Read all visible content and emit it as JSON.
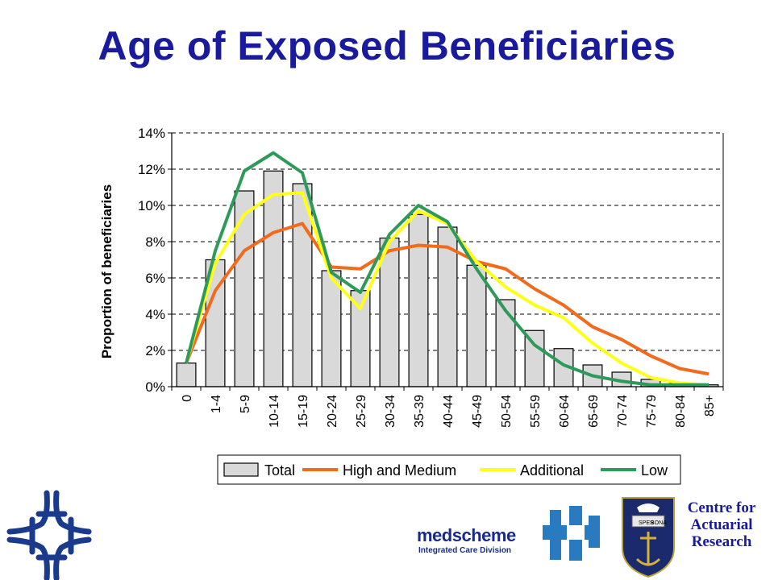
{
  "slide": {
    "title": "Age of Exposed Beneficiaries"
  },
  "colors": {
    "title": "#1a1a9c",
    "bar_fill": "#d9d9d9",
    "high_medium": "#f26b1d",
    "additional": "#ffff1a",
    "low": "#2e9a5a",
    "logo_blue": "#1a3a8c"
  },
  "chart_data": {
    "type": "bar",
    "ylabel": "Proportion of beneficiaries",
    "xlabel": "",
    "ylim": [
      0,
      0.14
    ],
    "y_ticks": [
      "0%",
      "2%",
      "4%",
      "6%",
      "8%",
      "10%",
      "12%",
      "14%"
    ],
    "grid": "horizontal dashed",
    "legend_position": "bottom",
    "categories": [
      "0",
      "1-4",
      "5-9",
      "10-14",
      "15-19",
      "20-24",
      "25-29",
      "30-34",
      "35-39",
      "40-44",
      "45-49",
      "50-54",
      "55-59",
      "60-64",
      "65-69",
      "70-74",
      "75-79",
      "80-84",
      "85+"
    ],
    "series": [
      {
        "name": "Total",
        "type": "bar",
        "values": [
          0.013,
          0.07,
          0.108,
          0.119,
          0.112,
          0.064,
          0.053,
          0.082,
          0.095,
          0.088,
          0.067,
          0.048,
          0.031,
          0.021,
          0.012,
          0.008,
          0.004,
          0.002,
          0.001
        ]
      },
      {
        "name": "High and Medium",
        "type": "line",
        "values": [
          0.013,
          0.053,
          0.075,
          0.085,
          0.09,
          0.066,
          0.065,
          0.075,
          0.078,
          0.077,
          0.069,
          0.065,
          0.054,
          0.045,
          0.033,
          0.026,
          0.017,
          0.01,
          0.007
        ]
      },
      {
        "name": "Additional",
        "type": "line",
        "values": [
          0.013,
          0.068,
          0.095,
          0.106,
          0.107,
          0.06,
          0.043,
          0.08,
          0.097,
          0.09,
          0.069,
          0.055,
          0.045,
          0.038,
          0.024,
          0.013,
          0.005,
          0.002,
          0.001
        ]
      },
      {
        "name": "Low",
        "type": "line",
        "values": [
          0.013,
          0.075,
          0.119,
          0.129,
          0.118,
          0.063,
          0.052,
          0.084,
          0.1,
          0.091,
          0.065,
          0.042,
          0.023,
          0.012,
          0.006,
          0.003,
          0.001,
          0.001,
          0.001
        ]
      }
    ]
  },
  "logos": {
    "car_lines": [
      "Centre for",
      "Actuarial",
      "Research"
    ],
    "medscheme_name": "medscheme",
    "medscheme_division": "Integrated Care Division",
    "crest_motto_left": "SPES",
    "crest_motto_right": "BONA"
  }
}
